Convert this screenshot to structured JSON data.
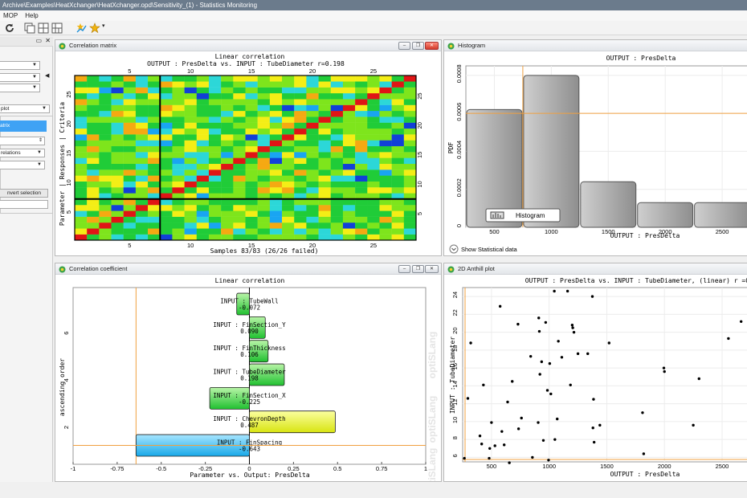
{
  "window": {
    "title": "Archive\\Examples\\HeatXchanger\\HeatXchanger.opd\\Sensitivity_(1) - Statistics Monitoring"
  },
  "menu": [
    "MOP",
    "Help"
  ],
  "toolbar": {
    "icons": [
      "refresh-icon",
      "single-view-icon",
      "quad-view-icon",
      "layout-icon",
      "plot-star-icon",
      "star-icon",
      "dropdown-arrow-icon"
    ]
  },
  "sidepanel": {
    "header_close": "✕",
    "plot_select": "plot",
    "active_item": "atrix",
    "spin_value": "",
    "correlations_select": "relations",
    "invert_button": "nvert selection",
    "filter_value": ""
  },
  "panels": {
    "matrix": {
      "title": "Correlation matrix",
      "chart_title": "Linear correlation",
      "subtitle": "OUTPUT : PresDelta vs. INPUT : TubeDiameter  r=0.198",
      "ylabel": "Parameter | Responses | Criteria",
      "footer": "Samples 83/83 (26/26 failed)"
    },
    "histogram": {
      "title": "Histogram",
      "chart_title": "OUTPUT : PresDelta",
      "ylabel": "PDF",
      "xlabel": "OUTPUT : PresDelta",
      "legend": "Histogram",
      "show_stats": "Show Statistical data"
    },
    "coeff": {
      "title": "Correlation coefficient",
      "chart_title": "Linear correlation",
      "ylabel": "ascending order",
      "xlabel": "Parameter vs. Output: PresDelta",
      "watermark": "optiSLang"
    },
    "anthill": {
      "title": "2D Anthill plot",
      "chart_title": "OUTPUT : PresDelta vs. INPUT : TubeDiameter, (linear) r =0.198",
      "xlabel": "OUTPUT : PresDelta",
      "ylabel": "INPUT : TubeDiameter"
    }
  },
  "chart_data": [
    {
      "type": "heatmap",
      "title": "Linear correlation",
      "subtitle": "OUTPUT : PresDelta vs. INPUT : TubeDiameter  r=0.198",
      "xlabel": "Samples 83/83 (26/26 failed)",
      "ylabel": "Parameter | Responses | Criteria",
      "size": 28,
      "ticks": [
        5,
        10,
        15,
        20,
        25
      ],
      "blocks": [
        7,
        28
      ],
      "colorscale": [
        "#1140d8",
        "#19a5f2",
        "#2cd7d8",
        "#20cc38",
        "#7ee51c",
        "#f4ee16",
        "#f5a912",
        "#e01515"
      ]
    },
    {
      "type": "bar",
      "title": "OUTPUT : PresDelta",
      "xlabel": "OUTPUT : PresDelta",
      "ylabel": "PDF",
      "bin_edges": [
        250,
        750,
        1250,
        1750,
        2250,
        2750
      ],
      "values": [
        0.00062,
        0.0008,
        0.00024,
        0.00013,
        0.00013
      ],
      "mean_line": 0.0006,
      "xticks": [
        500,
        1000,
        1500,
        2000,
        2500
      ],
      "yticks": [
        0,
        0.0002,
        0.0004,
        0.0006,
        0.0008
      ],
      "ylim": [
        0,
        0.00085
      ]
    },
    {
      "type": "bar",
      "orientation": "horizontal",
      "title": "Linear correlation",
      "xlabel": "Parameter vs. Output: PresDelta",
      "ylabel": "ascending order",
      "xlim": [
        -1,
        1
      ],
      "xticks": [
        -1,
        -0.75,
        -0.5,
        -0.25,
        0,
        0.25,
        0.5,
        0.75,
        1
      ],
      "yticks": [
        2,
        4,
        6
      ],
      "bars": [
        {
          "name": "INPUT : TubeWall",
          "value": -0.072
        },
        {
          "name": "INPUT : FinSection_Y",
          "value": 0.09
        },
        {
          "name": "INPUT : FinThickness",
          "value": 0.106
        },
        {
          "name": "INPUT : TubeDiameter",
          "value": 0.198
        },
        {
          "name": "INPUT : FinSection_X",
          "value": -0.225
        },
        {
          "name": "INPUT : ChevronDepth",
          "value": 0.487
        },
        {
          "name": "INPUT : FinSpacing",
          "value": -0.643
        }
      ]
    },
    {
      "type": "scatter",
      "title": "OUTPUT : PresDelta vs. INPUT : TubeDiameter, (linear) r =0.198",
      "xlabel": "OUTPUT : PresDelta",
      "ylabel": "INPUT : TubeDiameter",
      "xlim": [
        250,
        2700
      ],
      "ylim": [
        5.5,
        25
      ],
      "xticks": [
        500,
        1000,
        1500,
        2000,
        2500
      ],
      "yticks": [
        6,
        8,
        10,
        12,
        14,
        16,
        18,
        20,
        22,
        24
      ],
      "points": [
        [
          265,
          5.9
        ],
        [
          295,
          12.6
        ],
        [
          320,
          18.8
        ],
        [
          400,
          8.4
        ],
        [
          415,
          7.5
        ],
        [
          430,
          14.1
        ],
        [
          480,
          5.9
        ],
        [
          485,
          7.0
        ],
        [
          500,
          9.9
        ],
        [
          530,
          7.3
        ],
        [
          575,
          22.9
        ],
        [
          590,
          8.9
        ],
        [
          610,
          7.4
        ],
        [
          640,
          12.2
        ],
        [
          655,
          5.4
        ],
        [
          680,
          14.5
        ],
        [
          730,
          20.9
        ],
        [
          735,
          9.2
        ],
        [
          760,
          10.4
        ],
        [
          840,
          17.3
        ],
        [
          855,
          6.0
        ],
        [
          905,
          9.9
        ],
        [
          910,
          21.6
        ],
        [
          915,
          20.1
        ],
        [
          920,
          15.3
        ],
        [
          935,
          16.7
        ],
        [
          950,
          7.9
        ],
        [
          970,
          21.1
        ],
        [
          985,
          13.5
        ],
        [
          995,
          5.7
        ],
        [
          1005,
          16.5
        ],
        [
          1015,
          13.1
        ],
        [
          1045,
          24.6
        ],
        [
          1050,
          8.0
        ],
        [
          1070,
          10.3
        ],
        [
          1080,
          19.0
        ],
        [
          1110,
          17.2
        ],
        [
          1160,
          24.6
        ],
        [
          1185,
          14.1
        ],
        [
          1200,
          20.8
        ],
        [
          1205,
          20.5
        ],
        [
          1215,
          20.0
        ],
        [
          1250,
          17.6
        ],
        [
          1335,
          17.6
        ],
        [
          1375,
          24.0
        ],
        [
          1380,
          9.3
        ],
        [
          1385,
          12.5
        ],
        [
          1390,
          7.7
        ],
        [
          1440,
          9.6
        ],
        [
          1520,
          18.8
        ],
        [
          1810,
          11.0
        ],
        [
          1820,
          6.4
        ],
        [
          1995,
          16.0
        ],
        [
          2000,
          15.6
        ],
        [
          2250,
          9.6
        ],
        [
          2300,
          14.8
        ],
        [
          2555,
          19.3
        ],
        [
          2665,
          21.2
        ]
      ]
    }
  ]
}
